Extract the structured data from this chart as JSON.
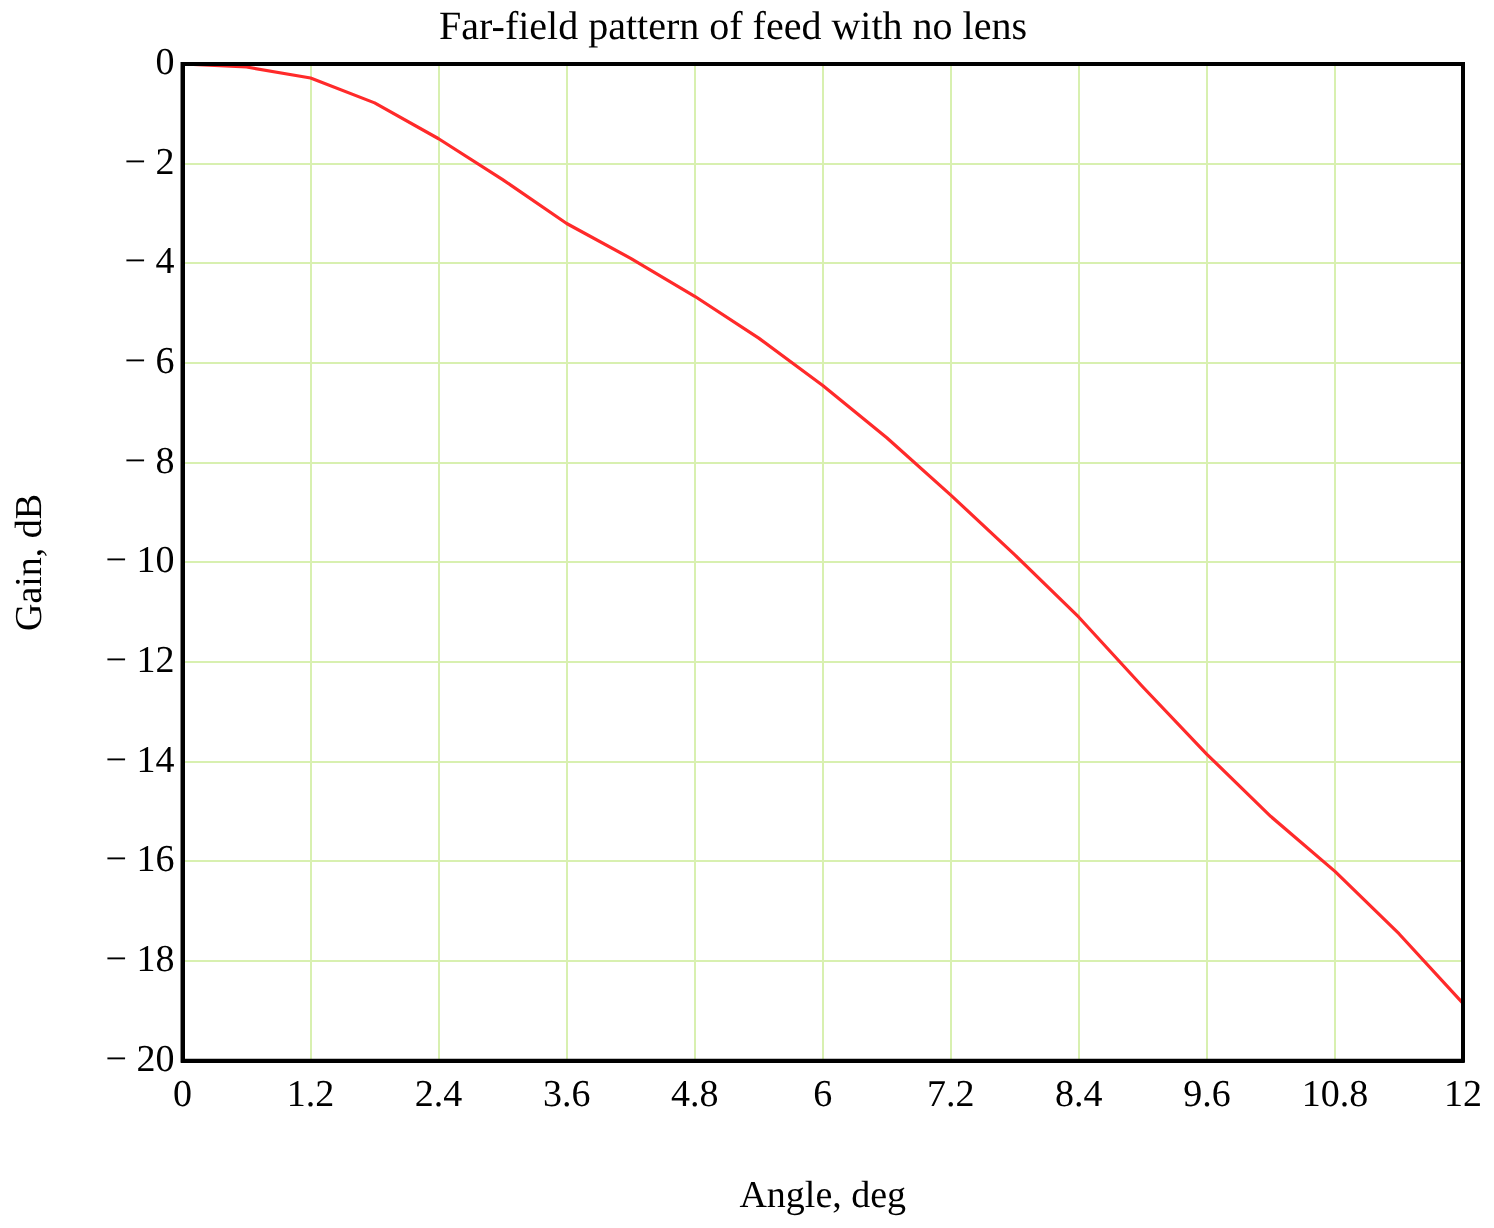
{
  "chart_data": {
    "type": "line",
    "title": "Far-field pattern of feed with no lens",
    "xlabel": "Angle, deg",
    "ylabel": "Gain, dB",
    "x": [
      0,
      0.6,
      1.2,
      1.8,
      2.4,
      3.0,
      3.6,
      4.2,
      4.8,
      5.4,
      6.0,
      6.6,
      7.2,
      7.8,
      8.4,
      9.0,
      9.6,
      10.2,
      10.8,
      11.4,
      12
    ],
    "series": [
      {
        "color": "#ff2a2a",
        "values": [
          0,
          -0.06,
          -0.28,
          -0.78,
          -1.5,
          -2.32,
          -3.2,
          -3.9,
          -4.66,
          -5.5,
          -6.45,
          -7.5,
          -8.65,
          -9.85,
          -11.1,
          -12.5,
          -13.85,
          -15.1,
          -16.2,
          -17.45,
          -18.85
        ]
      }
    ],
    "xlim": [
      0,
      12
    ],
    "xticks": [
      0,
      1.2,
      2.4,
      3.6,
      4.8,
      6,
      7.2,
      8.4,
      9.6,
      10.8,
      12
    ],
    "ylim": [
      -20,
      0
    ],
    "yticks": [
      {
        "value": 0,
        "label": "0"
      },
      {
        "value": -2,
        "label": "− 2"
      },
      {
        "value": -4,
        "label": "− 4"
      },
      {
        "value": -6,
        "label": "− 6"
      },
      {
        "value": -8,
        "label": "− 8"
      },
      {
        "value": -10,
        "label": "− 10"
      },
      {
        "value": -12,
        "label": "− 12"
      },
      {
        "value": -14,
        "label": "− 14"
      },
      {
        "value": -16,
        "label": "− 16"
      },
      {
        "value": -18,
        "label": "− 18"
      },
      {
        "value": -20,
        "label": "− 20"
      }
    ],
    "grid": true,
    "legend": false,
    "marker": "none",
    "line_style": "solid"
  }
}
